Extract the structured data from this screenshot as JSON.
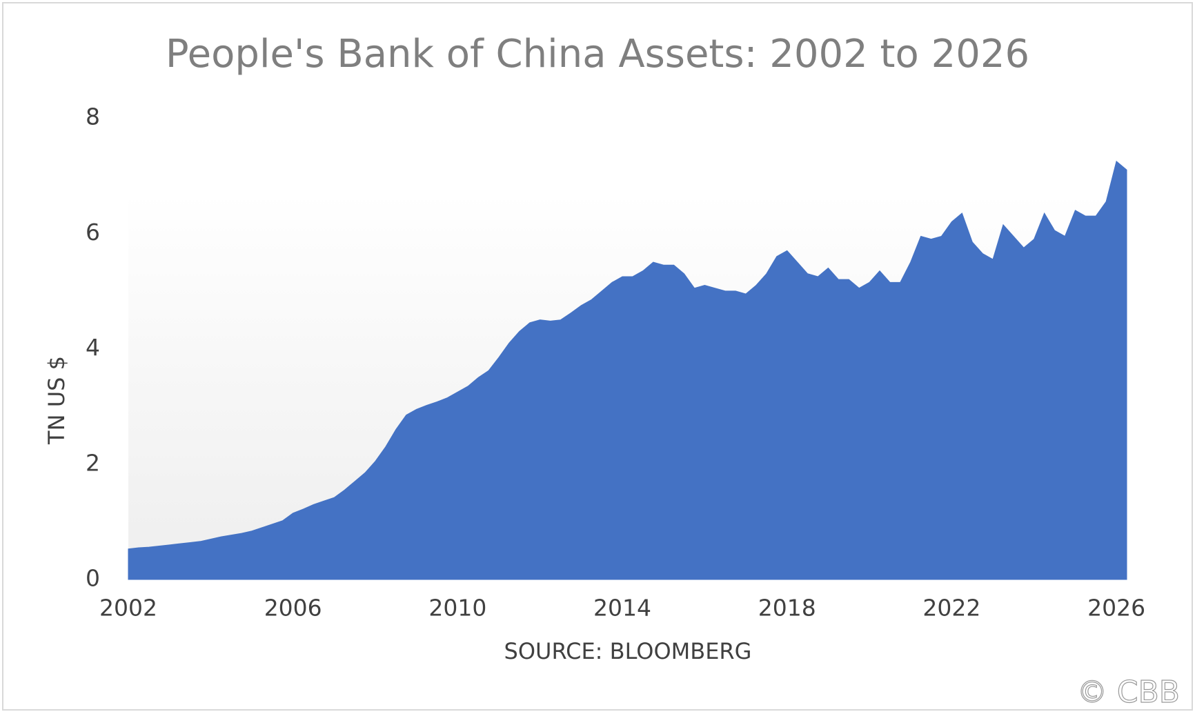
{
  "chart_data": {
    "type": "area",
    "title": "People's Bank of China Assets: 2002 to 2026",
    "y_label": "TN US $",
    "x_label": "SOURCE: BLOOMBERG",
    "watermark": "© CBB",
    "color": "#4472c4",
    "x": [
      2002,
      2002.25,
      2002.5,
      2002.75,
      2003,
      2003.25,
      2003.5,
      2003.75,
      2004,
      2004.25,
      2004.5,
      2004.75,
      2005,
      2005.25,
      2005.5,
      2005.75,
      2006,
      2006.25,
      2006.5,
      2006.75,
      2007,
      2007.25,
      2007.5,
      2007.75,
      2008,
      2008.25,
      2008.5,
      2008.75,
      2009,
      2009.25,
      2009.5,
      2009.75,
      2010,
      2010.25,
      2010.5,
      2010.75,
      2011,
      2011.25,
      2011.5,
      2011.75,
      2012,
      2012.25,
      2012.5,
      2012.75,
      2013,
      2013.25,
      2013.5,
      2013.75,
      2014,
      2014.25,
      2014.5,
      2014.75,
      2015,
      2015.25,
      2015.5,
      2015.75,
      2016,
      2016.25,
      2016.5,
      2016.75,
      2017,
      2017.25,
      2017.5,
      2017.75,
      2018,
      2018.25,
      2018.5,
      2018.75,
      2019,
      2019.25,
      2019.5,
      2019.75,
      2020,
      2020.25,
      2020.5,
      2020.75,
      2021,
      2021.25,
      2021.5,
      2021.75,
      2022,
      2022.25,
      2022.5,
      2022.75,
      2023,
      2023.25,
      2023.5,
      2023.75,
      2024,
      2024.25,
      2024.5,
      2024.75,
      2025,
      2025.25,
      2025.5,
      2025.75,
      2026,
      2026.25
    ],
    "values": [
      0.53,
      0.55,
      0.56,
      0.58,
      0.6,
      0.62,
      0.64,
      0.66,
      0.7,
      0.74,
      0.77,
      0.8,
      0.84,
      0.9,
      0.96,
      1.02,
      1.15,
      1.22,
      1.3,
      1.36,
      1.42,
      1.55,
      1.7,
      1.85,
      2.05,
      2.3,
      2.6,
      2.85,
      2.95,
      3.02,
      3.08,
      3.15,
      3.25,
      3.35,
      3.5,
      3.62,
      3.85,
      4.1,
      4.3,
      4.45,
      4.5,
      4.48,
      4.5,
      4.62,
      4.75,
      4.85,
      5.0,
      5.15,
      5.25,
      5.25,
      5.35,
      5.5,
      5.45,
      5.45,
      5.3,
      5.05,
      5.1,
      5.05,
      5.0,
      5.0,
      4.95,
      5.1,
      5.3,
      5.6,
      5.7,
      5.5,
      5.3,
      5.25,
      5.4,
      5.2,
      5.2,
      5.05,
      5.15,
      5.35,
      5.15,
      5.15,
      5.5,
      5.95,
      5.9,
      5.95,
      6.2,
      6.35,
      5.85,
      5.65,
      5.55,
      6.15,
      5.95,
      5.75,
      5.9,
      6.35,
      6.05,
      5.95,
      6.4,
      6.3,
      6.3,
      6.55,
      7.25,
      7.1
    ],
    "xlim": [
      2002,
      2026.25
    ],
    "xticks": [
      2002,
      2006,
      2010,
      2014,
      2018,
      2022,
      2026
    ],
    "ylim": [
      0,
      8
    ],
    "yticks": [
      0,
      2,
      4,
      6,
      8
    ]
  }
}
